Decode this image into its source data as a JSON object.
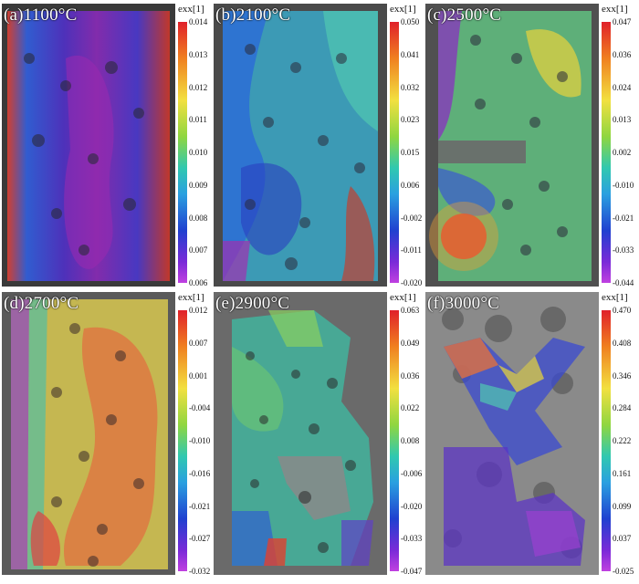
{
  "colorbar_title": "exx[1]",
  "panels": [
    {
      "label": "(a)1100°C",
      "ticks": [
        "0.014",
        "0.013",
        "0.012",
        "0.011",
        "0.010",
        "0.009",
        "0.008",
        "0.007",
        "0.006"
      ]
    },
    {
      "label": "(b)2100°C",
      "ticks": [
        "0.050",
        "0.041",
        "0.032",
        "0.023",
        "0.015",
        "0.006",
        "-0.002",
        "-0.011",
        "-0.020"
      ]
    },
    {
      "label": "(c)2500°C",
      "ticks": [
        "0.047",
        "0.036",
        "0.024",
        "0.013",
        "0.002",
        "-0.010",
        "-0.021",
        "-0.033",
        "-0.044"
      ]
    },
    {
      "label": "(d)2700°C",
      "ticks": [
        "0.012",
        "0.007",
        "0.001",
        "-0.004",
        "-0.010",
        "-0.016",
        "-0.021",
        "-0.027",
        "-0.032"
      ]
    },
    {
      "label": "(e)2900°C",
      "ticks": [
        "0.063",
        "0.049",
        "0.036",
        "0.022",
        "0.008",
        "-0.006",
        "-0.020",
        "-0.033",
        "-0.047"
      ]
    },
    {
      "label": "(f)3000°C",
      "ticks": [
        "0.470",
        "0.408",
        "0.346",
        "0.284",
        "0.222",
        "0.161",
        "0.099",
        "0.037",
        "-0.025"
      ]
    }
  ]
}
